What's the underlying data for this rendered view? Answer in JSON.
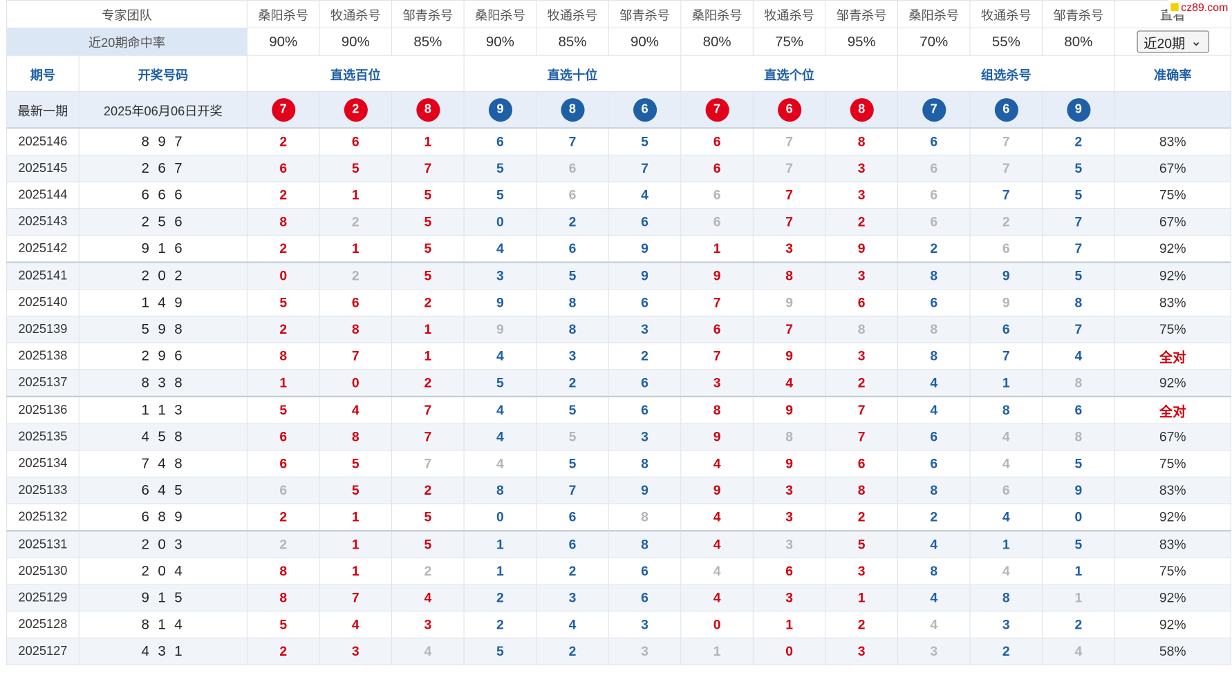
{
  "watermark": "cz89.com",
  "header": {
    "team_label": "专家团队",
    "hit_label": "近20期命中率",
    "experts": [
      "桑阳杀号",
      "牧通杀号",
      "邹青杀号",
      "桑阳杀号",
      "牧通杀号",
      "邹青杀号",
      "桑阳杀号",
      "牧通杀号",
      "邹青杀号",
      "桑阳杀号",
      "牧通杀号",
      "邹青杀号"
    ],
    "hit_rates": [
      "90%",
      "90%",
      "85%",
      "90%",
      "85%",
      "90%",
      "80%",
      "75%",
      "95%",
      "70%",
      "55%",
      "80%"
    ],
    "last_col_label": "直看",
    "period_select": "近20期"
  },
  "groups": {
    "period": "期号",
    "draw": "开奖号码",
    "hundreds": "直选百位",
    "tens": "直选十位",
    "units": "直选个位",
    "group": "组选杀号",
    "accuracy": "准确率"
  },
  "latest": {
    "label": "最新一期",
    "date": "2025年06月06日开奖",
    "balls": [
      "7",
      "2",
      "8",
      "9",
      "8",
      "6",
      "7",
      "6",
      "8",
      "7",
      "6",
      "9"
    ]
  },
  "colors": {
    "red": "#d4000e",
    "blue": "#1f5fa6",
    "gray": "#b5b5b5",
    "header_blue": "#dce7f5"
  },
  "rows": [
    {
      "period": "2025146",
      "draw": "8 9 7",
      "kills": [
        "2",
        "6",
        "1",
        "6",
        "7",
        "5",
        "6",
        "7",
        "8",
        "6",
        "7",
        "2"
      ],
      "miss": [
        7,
        10
      ],
      "accuracy": "83%"
    },
    {
      "period": "2025145",
      "draw": "2 6 7",
      "kills": [
        "6",
        "5",
        "7",
        "5",
        "6",
        "7",
        "6",
        "7",
        "3",
        "6",
        "7",
        "5"
      ],
      "miss": [
        4,
        7,
        9,
        10
      ],
      "accuracy": "67%"
    },
    {
      "period": "2025144",
      "draw": "6 6 6",
      "kills": [
        "2",
        "1",
        "5",
        "5",
        "6",
        "4",
        "6",
        "7",
        "3",
        "6",
        "7",
        "5"
      ],
      "miss": [
        4,
        6,
        9
      ],
      "accuracy": "75%"
    },
    {
      "period": "2025143",
      "draw": "2 5 6",
      "kills": [
        "8",
        "2",
        "5",
        "0",
        "2",
        "6",
        "6",
        "7",
        "2",
        "6",
        "2",
        "7"
      ],
      "miss": [
        1,
        6,
        9,
        10
      ],
      "accuracy": "67%"
    },
    {
      "period": "2025142",
      "draw": "9 1 6",
      "kills": [
        "2",
        "1",
        "5",
        "4",
        "6",
        "9",
        "1",
        "3",
        "9",
        "2",
        "6",
        "7"
      ],
      "miss": [
        10
      ],
      "accuracy": "92%"
    },
    {
      "period": "2025141",
      "draw": "2 0 2",
      "kills": [
        "0",
        "2",
        "5",
        "3",
        "5",
        "9",
        "9",
        "8",
        "3",
        "8",
        "9",
        "5"
      ],
      "miss": [
        1
      ],
      "accuracy": "92%"
    },
    {
      "period": "2025140",
      "draw": "1 4 9",
      "kills": [
        "5",
        "6",
        "2",
        "9",
        "8",
        "6",
        "7",
        "9",
        "6",
        "6",
        "9",
        "8"
      ],
      "miss": [
        7,
        10
      ],
      "accuracy": "83%"
    },
    {
      "period": "2025139",
      "draw": "5 9 8",
      "kills": [
        "2",
        "8",
        "1",
        "9",
        "8",
        "3",
        "6",
        "7",
        "8",
        "8",
        "6",
        "7"
      ],
      "miss": [
        3,
        8,
        9
      ],
      "accuracy": "75%"
    },
    {
      "period": "2025138",
      "draw": "2 9 6",
      "kills": [
        "8",
        "7",
        "1",
        "4",
        "3",
        "2",
        "7",
        "9",
        "3",
        "8",
        "7",
        "4"
      ],
      "miss": [],
      "accuracy": "全对"
    },
    {
      "period": "2025137",
      "draw": "8 3 8",
      "kills": [
        "1",
        "0",
        "2",
        "5",
        "2",
        "6",
        "3",
        "4",
        "2",
        "4",
        "1",
        "8"
      ],
      "miss": [
        11
      ],
      "accuracy": "92%"
    },
    {
      "period": "2025136",
      "draw": "1 1 3",
      "kills": [
        "5",
        "4",
        "7",
        "4",
        "5",
        "6",
        "8",
        "9",
        "7",
        "4",
        "8",
        "6"
      ],
      "miss": [],
      "accuracy": "全对"
    },
    {
      "period": "2025135",
      "draw": "4 5 8",
      "kills": [
        "6",
        "8",
        "7",
        "4",
        "5",
        "3",
        "9",
        "8",
        "7",
        "6",
        "4",
        "8"
      ],
      "miss": [
        4,
        7,
        10,
        11
      ],
      "accuracy": "67%"
    },
    {
      "period": "2025134",
      "draw": "7 4 8",
      "kills": [
        "6",
        "5",
        "7",
        "4",
        "5",
        "8",
        "4",
        "9",
        "6",
        "6",
        "4",
        "5"
      ],
      "miss": [
        2,
        3,
        10
      ],
      "accuracy": "75%"
    },
    {
      "period": "2025133",
      "draw": "6 4 5",
      "kills": [
        "6",
        "5",
        "2",
        "8",
        "7",
        "9",
        "9",
        "3",
        "8",
        "8",
        "6",
        "9"
      ],
      "miss": [
        0,
        10
      ],
      "accuracy": "83%"
    },
    {
      "period": "2025132",
      "draw": "6 8 9",
      "kills": [
        "2",
        "1",
        "5",
        "0",
        "6",
        "8",
        "4",
        "3",
        "2",
        "2",
        "4",
        "0"
      ],
      "miss": [
        5
      ],
      "accuracy": "92%"
    },
    {
      "period": "2025131",
      "draw": "2 0 3",
      "kills": [
        "2",
        "1",
        "5",
        "1",
        "6",
        "8",
        "4",
        "3",
        "5",
        "4",
        "1",
        "5"
      ],
      "miss": [
        0,
        7
      ],
      "accuracy": "83%"
    },
    {
      "period": "2025130",
      "draw": "2 0 4",
      "kills": [
        "8",
        "1",
        "2",
        "1",
        "2",
        "6",
        "4",
        "6",
        "3",
        "8",
        "4",
        "1"
      ],
      "miss": [
        2,
        6,
        10
      ],
      "accuracy": "75%"
    },
    {
      "period": "2025129",
      "draw": "9 1 5",
      "kills": [
        "8",
        "7",
        "4",
        "2",
        "3",
        "6",
        "4",
        "3",
        "1",
        "4",
        "8",
        "1"
      ],
      "miss": [
        11
      ],
      "accuracy": "92%"
    },
    {
      "period": "2025128",
      "draw": "8 1 4",
      "kills": [
        "5",
        "4",
        "3",
        "2",
        "4",
        "3",
        "0",
        "1",
        "2",
        "4",
        "3",
        "2"
      ],
      "miss": [
        9
      ],
      "accuracy": "92%"
    },
    {
      "period": "2025127",
      "draw": "4 3 1",
      "kills": [
        "2",
        "3",
        "4",
        "5",
        "2",
        "3",
        "1",
        "0",
        "3",
        "3",
        "2",
        "4"
      ],
      "miss": [
        2,
        5,
        6,
        9,
        11
      ],
      "accuracy": "58%"
    }
  ]
}
